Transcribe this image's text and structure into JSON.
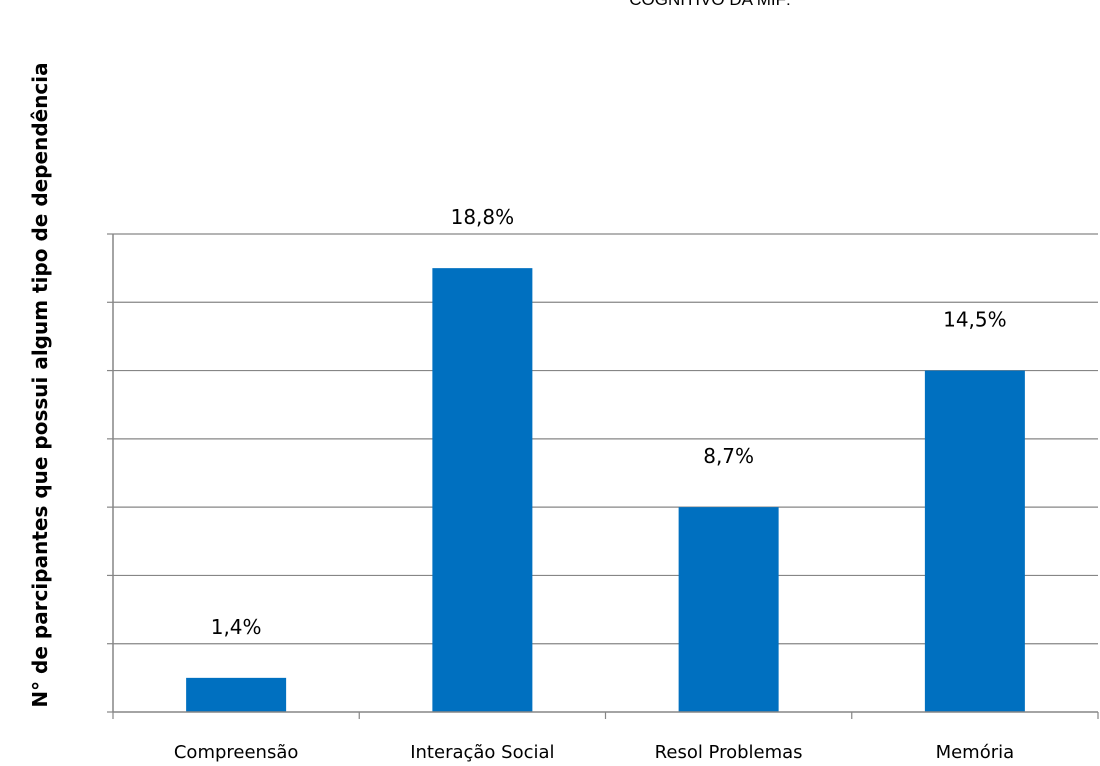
{
  "chart_data": {
    "type": "bar",
    "title": "COGNITIVO DA MIF:",
    "xlabel": "",
    "ylabel": "N° de parcipantes que possui algum tipo de dependência",
    "categories": [
      "Compreensão",
      "Interação Social",
      "Resol Problemas",
      "Memória"
    ],
    "values": [
      1,
      13,
      6,
      10
    ],
    "data_labels": [
      "1,4%",
      "18,8%",
      "8,7%",
      "14,5%"
    ],
    "ylim": [
      0,
      14
    ],
    "ytick_step": 2,
    "grid": true,
    "show_ytick_labels": false,
    "colors": {
      "bar": "#0070C0",
      "grid": "#868686",
      "axis": "#868686"
    }
  }
}
